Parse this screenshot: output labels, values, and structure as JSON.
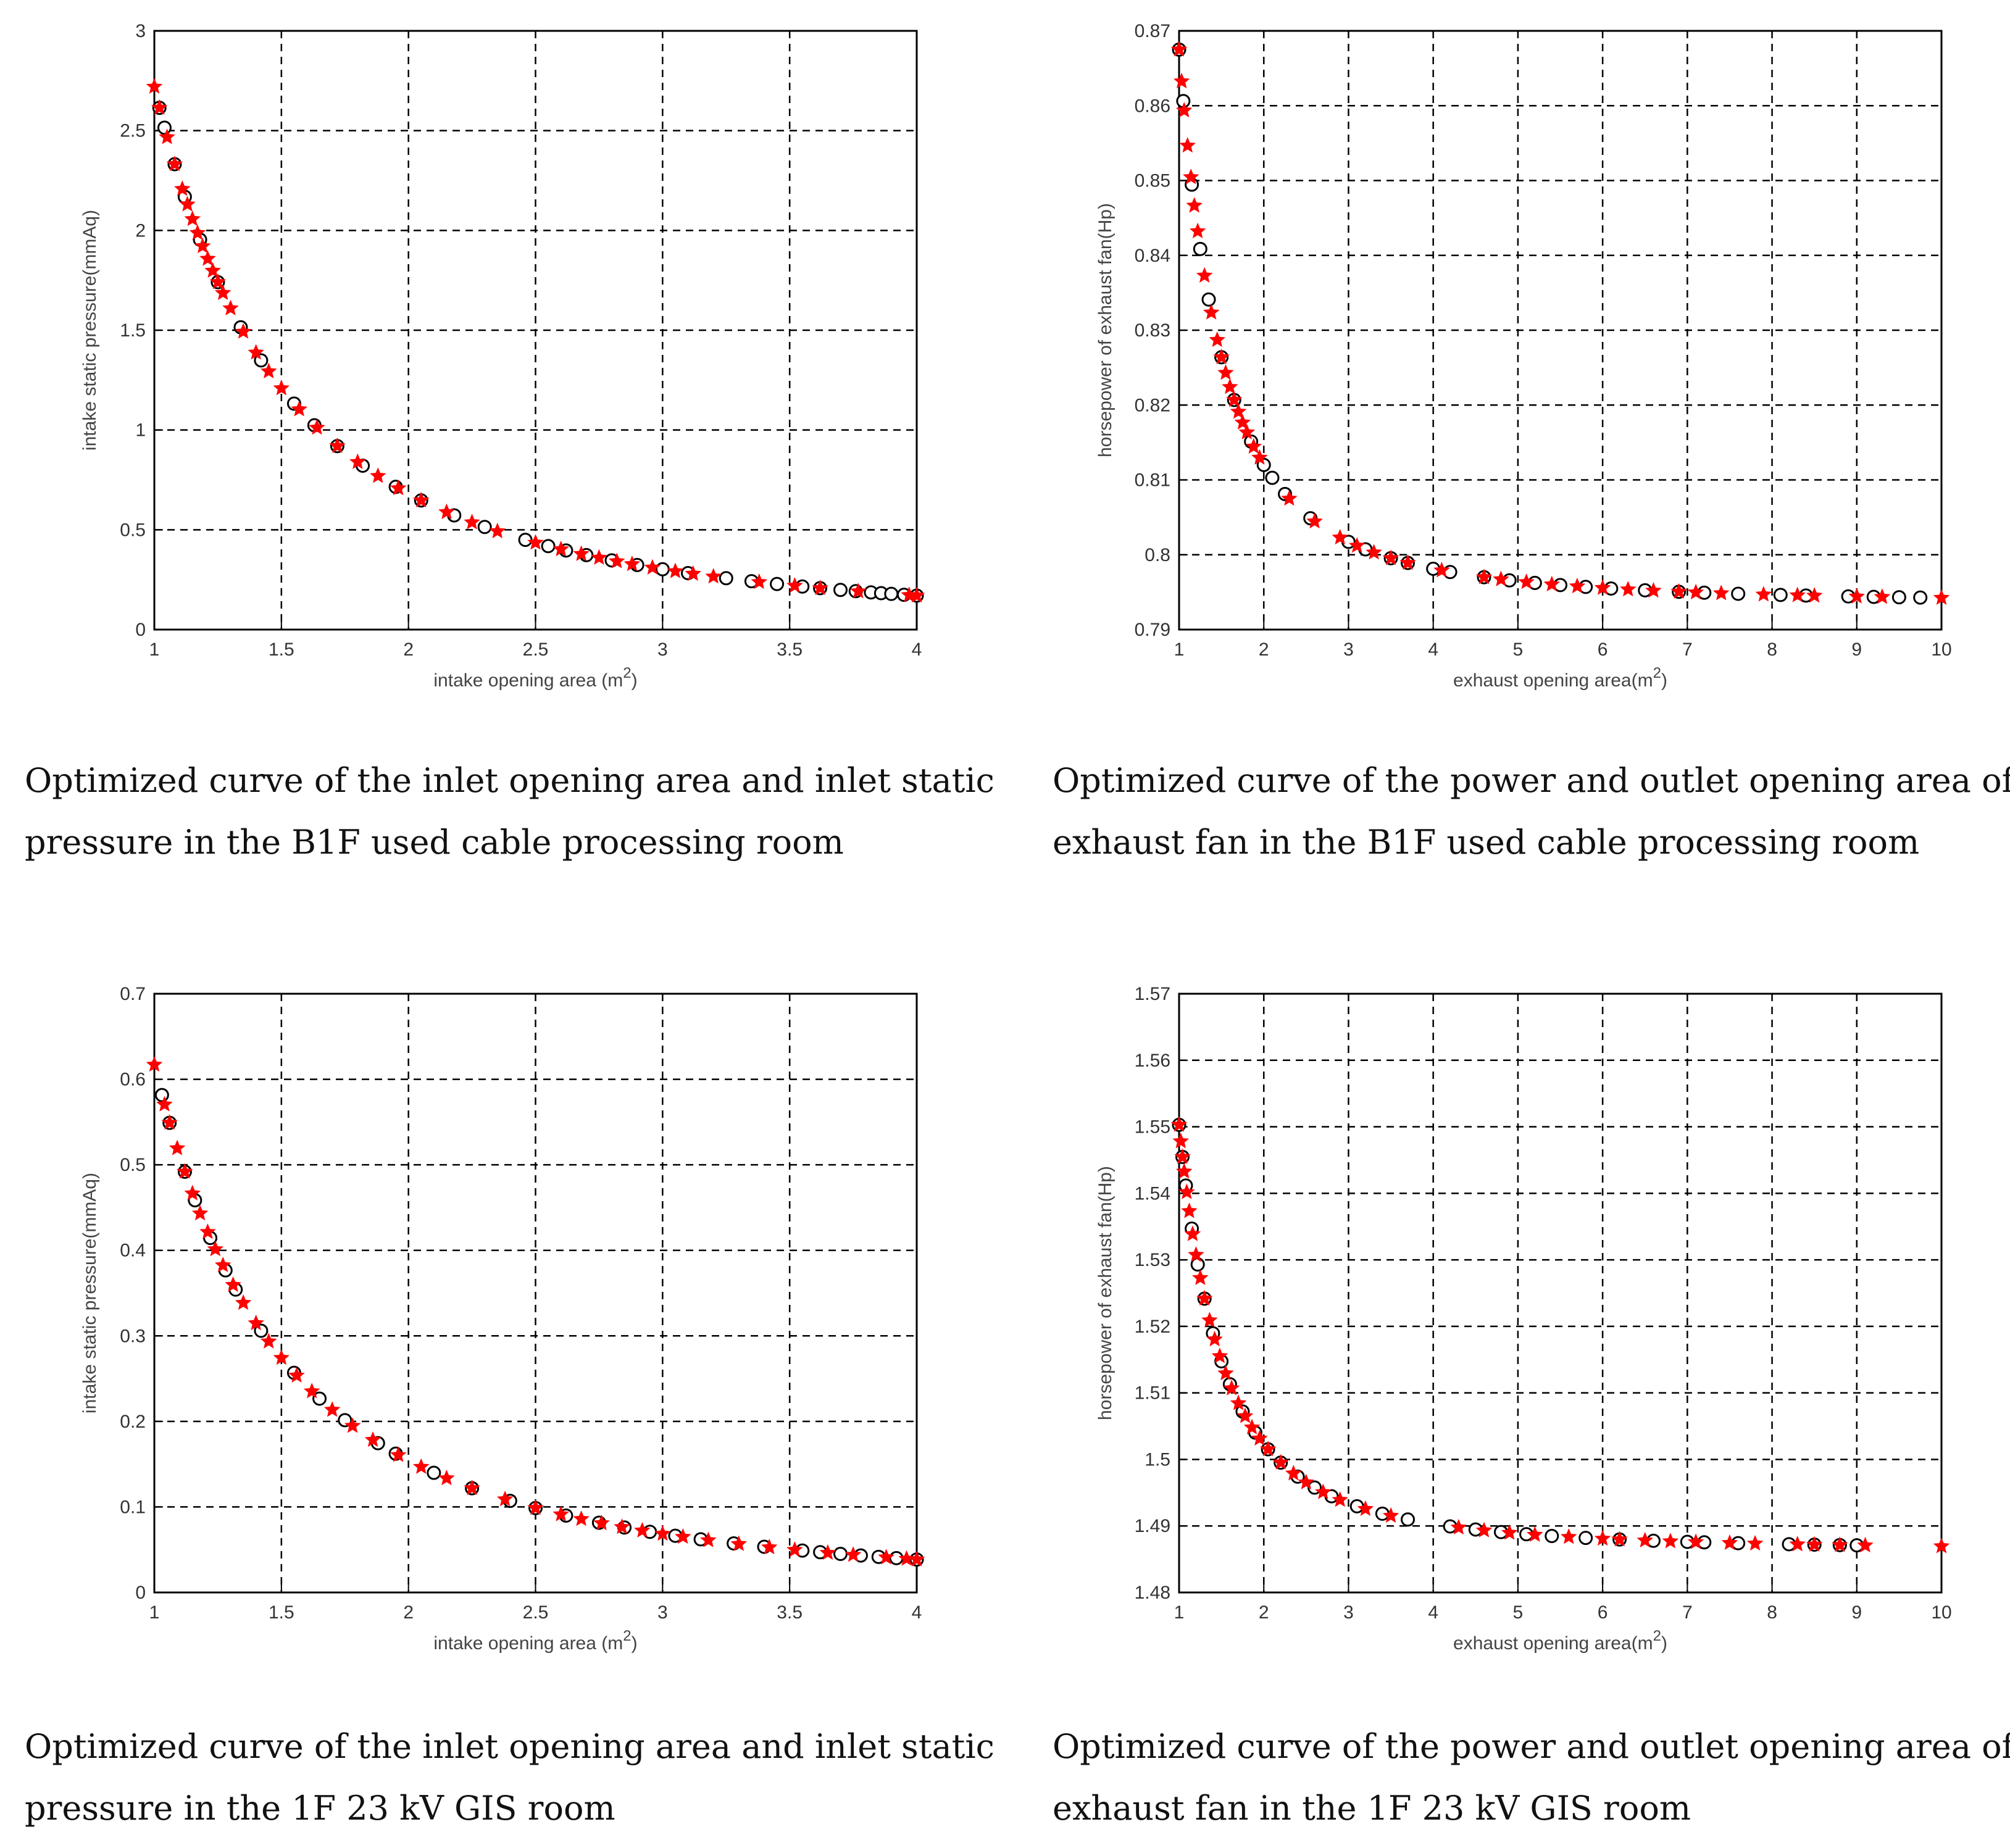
{
  "colors": {
    "series_black": "#000000",
    "series_red": "#ff0000",
    "grid": "#000000",
    "frame": "#000000"
  },
  "chart_data": [
    {
      "id": "intake-b1f",
      "type": "scatter",
      "xlabel": "intake opening area (m",
      "xlabel_sup": "2",
      "xlabel_tail": ")",
      "ylabel": "intake static pressure(mmAq)",
      "xlim": [
        1,
        4
      ],
      "ylim": [
        0,
        3
      ],
      "xticks": [
        "1",
        "1.5",
        "2",
        "2.5",
        "3",
        "3.5",
        "4"
      ],
      "yticks": [
        "0",
        "0.5",
        "1",
        "1.5",
        "2",
        "2.5",
        "3"
      ],
      "grid": true,
      "model": {
        "form": "a/x^2",
        "a": 2.72,
        "b": 0
      },
      "series": [
        {
          "name": "black-circles",
          "marker": "circle",
          "x": [
            1.02,
            1.04,
            1.08,
            1.12,
            1.18,
            1.25,
            1.34,
            1.42,
            1.55,
            1.63,
            1.72,
            1.82,
            1.95,
            2.05,
            2.18,
            2.3,
            2.46,
            2.55,
            2.62,
            2.7,
            2.8,
            2.9,
            3.0,
            3.1,
            3.25,
            3.35,
            3.45,
            3.55,
            3.62,
            3.7,
            3.76,
            3.82,
            3.86,
            3.9,
            3.95,
            4.0
          ]
        },
        {
          "name": "red-stars",
          "marker": "star",
          "x": [
            1.0,
            1.02,
            1.05,
            1.08,
            1.11,
            1.13,
            1.15,
            1.17,
            1.19,
            1.21,
            1.23,
            1.25,
            1.27,
            1.3,
            1.35,
            1.4,
            1.45,
            1.5,
            1.57,
            1.64,
            1.72,
            1.8,
            1.88,
            1.96,
            2.05,
            2.15,
            2.25,
            2.35,
            2.5,
            2.6,
            2.68,
            2.75,
            2.82,
            2.88,
            2.96,
            3.05,
            3.12,
            3.2,
            3.38,
            3.52,
            3.62,
            3.77,
            3.97,
            4.0
          ]
        }
      ]
    },
    {
      "id": "exhaust-b1f",
      "type": "scatter",
      "xlabel": "exhaust opening area(m",
      "xlabel_sup": "2",
      "xlabel_tail": ")",
      "ylabel": "horsepower of exhaust fan(Hp)",
      "xlim": [
        1,
        10
      ],
      "ylim": [
        0.79,
        0.87
      ],
      "xticks": [
        "1",
        "2",
        "3",
        "4",
        "5",
        "6",
        "7",
        "8",
        "9",
        "10"
      ],
      "yticks": [
        "0.79",
        "0.8",
        "0.81",
        "0.82",
        "0.83",
        "0.84",
        "0.85",
        "0.86",
        "0.87"
      ],
      "grid": true,
      "model": {
        "form": "b+a/x^2",
        "a": 0.074,
        "b": 0.7935
      },
      "series": [
        {
          "name": "black-circles",
          "marker": "circle",
          "x": [
            1.0,
            1.05,
            1.15,
            1.25,
            1.35,
            1.5,
            1.65,
            1.85,
            2.0,
            2.1,
            2.25,
            2.55,
            3.0,
            3.2,
            3.5,
            3.7,
            4.0,
            4.2,
            4.6,
            4.9,
            5.2,
            5.5,
            5.8,
            6.1,
            6.5,
            6.9,
            7.2,
            7.6,
            8.1,
            8.4,
            8.9,
            9.2,
            9.5,
            9.75
          ]
        },
        {
          "name": "red-stars",
          "marker": "star",
          "x": [
            1.0,
            1.03,
            1.06,
            1.1,
            1.14,
            1.18,
            1.22,
            1.3,
            1.38,
            1.45,
            1.5,
            1.55,
            1.6,
            1.65,
            1.7,
            1.75,
            1.8,
            1.88,
            1.95,
            2.3,
            2.6,
            2.9,
            3.1,
            3.3,
            3.5,
            3.7,
            4.1,
            4.6,
            4.8,
            5.1,
            5.4,
            5.7,
            6.0,
            6.3,
            6.6,
            6.9,
            7.1,
            7.4,
            7.9,
            8.3,
            8.5,
            9.0,
            9.3,
            10.0
          ]
        }
      ]
    },
    {
      "id": "intake-1f",
      "type": "scatter",
      "xlabel": "intake opening area (m",
      "xlabel_sup": "2",
      "xlabel_tail": ")",
      "ylabel": "intake static pressure(mmAq)",
      "xlim": [
        1,
        4
      ],
      "ylim": [
        0,
        0.7
      ],
      "xticks": [
        "1",
        "1.5",
        "2",
        "2.5",
        "3",
        "3.5",
        "4"
      ],
      "yticks": [
        "0",
        "0.1",
        "0.2",
        "0.3",
        "0.4",
        "0.5",
        "0.6",
        "0.7"
      ],
      "grid": true,
      "model": {
        "form": "a/x^2",
        "a": 0.617,
        "b": 0
      },
      "series": [
        {
          "name": "black-circles",
          "marker": "circle",
          "x": [
            1.03,
            1.06,
            1.12,
            1.16,
            1.22,
            1.28,
            1.32,
            1.42,
            1.55,
            1.65,
            1.75,
            1.88,
            1.95,
            2.1,
            2.25,
            2.4,
            2.5,
            2.62,
            2.75,
            2.85,
            2.95,
            3.05,
            3.15,
            3.28,
            3.4,
            3.55,
            3.62,
            3.7,
            3.78,
            3.85,
            3.92,
            4.0
          ]
        },
        {
          "name": "red-stars",
          "marker": "star",
          "x": [
            1.0,
            1.04,
            1.06,
            1.09,
            1.12,
            1.15,
            1.18,
            1.21,
            1.24,
            1.27,
            1.31,
            1.35,
            1.4,
            1.45,
            1.5,
            1.56,
            1.62,
            1.7,
            1.78,
            1.86,
            1.96,
            2.05,
            2.15,
            2.25,
            2.38,
            2.5,
            2.6,
            2.68,
            2.76,
            2.84,
            2.92,
            3.0,
            3.08,
            3.18,
            3.3,
            3.42,
            3.52,
            3.65,
            3.75,
            3.88,
            3.96,
            4.0
          ]
        }
      ]
    },
    {
      "id": "exhaust-1f",
      "type": "scatter",
      "xlabel": "exhaust opening area(m",
      "xlabel_sup": "2",
      "xlabel_tail": ")",
      "ylabel": "horsepower of exhaust fan(Hp)",
      "xlim": [
        1,
        10
      ],
      "ylim": [
        1.48,
        1.57
      ],
      "xticks": [
        "1",
        "2",
        "3",
        "4",
        "5",
        "6",
        "7",
        "8",
        "9",
        "10"
      ],
      "yticks": [
        "1.48",
        "1.49",
        "1.5",
        "1.51",
        "1.52",
        "1.53",
        "1.54",
        "1.55",
        "1.56",
        "1.57"
      ],
      "grid": true,
      "model": {
        "form": "b+a/x^2",
        "a": 0.064,
        "b": 1.4863
      },
      "series": [
        {
          "name": "black-circles",
          "marker": "circle",
          "x": [
            1.0,
            1.04,
            1.08,
            1.15,
            1.22,
            1.3,
            1.4,
            1.5,
            1.6,
            1.75,
            1.9,
            2.05,
            2.2,
            2.4,
            2.6,
            2.8,
            3.1,
            3.4,
            3.7,
            4.2,
            4.5,
            4.8,
            5.1,
            5.4,
            5.8,
            6.2,
            6.6,
            7.0,
            7.2,
            7.6,
            8.2,
            8.5,
            8.8,
            9.0
          ]
        },
        {
          "name": "red-stars",
          "marker": "star",
          "x": [
            1.0,
            1.02,
            1.04,
            1.06,
            1.09,
            1.12,
            1.16,
            1.2,
            1.25,
            1.3,
            1.36,
            1.42,
            1.48,
            1.55,
            1.62,
            1.7,
            1.78,
            1.86,
            1.95,
            2.05,
            2.2,
            2.35,
            2.5,
            2.7,
            2.9,
            3.2,
            3.5,
            4.3,
            4.6,
            4.9,
            5.2,
            5.6,
            6.0,
            6.2,
            6.5,
            6.8,
            7.1,
            7.5,
            7.8,
            8.3,
            8.5,
            8.8,
            9.1,
            10.0
          ]
        }
      ]
    }
  ],
  "captions": [
    {
      "line1": "Optimized curve of the inlet opening area and inlet static",
      "line2": "pressure in the B1F used cable processing room"
    },
    {
      "line1": "Optimized curve of the power and outlet opening area of",
      "line2": "exhaust fan in the B1F used cable processing room"
    },
    {
      "line1": "Optimized curve of the inlet opening area and inlet static",
      "line2": "pressure in the 1F 23 kV GIS room"
    },
    {
      "line1": "Optimized curve of the power and outlet opening area of",
      "line2": "exhaust fan in the 1F 23 kV GIS room"
    }
  ]
}
